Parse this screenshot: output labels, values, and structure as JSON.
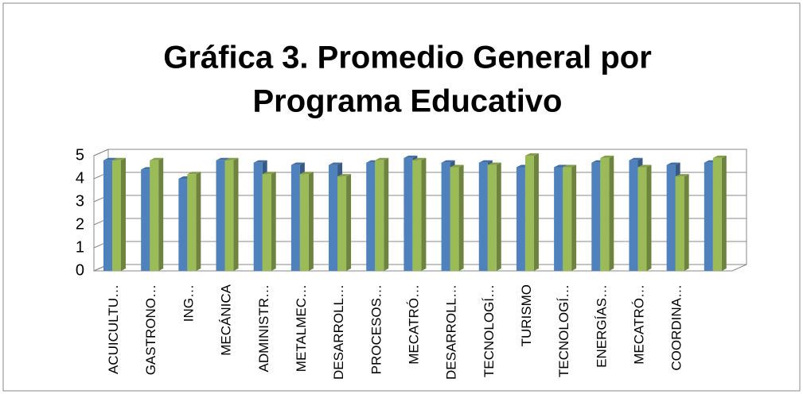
{
  "chart_data": {
    "type": "bar3d",
    "title": [
      "Gráfica 3. Promedio General por",
      "Programa Educativo"
    ],
    "categories": [
      "ACUICULTU…",
      "GASTRONO…",
      "ING…",
      "MECÁNICA",
      "ADMINISTR…",
      "METALMEC…",
      "DESARROLL…",
      "PROCESOS…",
      "MECATRÓ…",
      "DESARROLL…",
      "TECNOLOGÍ…",
      "TURISMO",
      "TECNOLOGÍ…",
      "ENERGÍAS…",
      "MECATRÓ…",
      "COORDINA…",
      null
    ],
    "series": [
      {
        "color": "#4f81bd",
        "values": [
          4.8,
          4.4,
          4.0,
          4.8,
          4.7,
          4.6,
          4.6,
          4.7,
          4.9,
          4.7,
          4.7,
          4.5,
          4.5,
          4.7,
          4.8,
          4.6,
          4.7
        ]
      },
      {
        "color": "#9bbb59",
        "values": [
          4.8,
          4.8,
          4.2,
          4.8,
          4.2,
          4.2,
          4.1,
          4.8,
          4.8,
          4.5,
          4.6,
          5.0,
          4.5,
          4.9,
          4.5,
          4.1,
          4.9
        ]
      }
    ],
    "ylim": [
      0,
      5
    ],
    "yticks": [
      0,
      1,
      2,
      3,
      4,
      5
    ],
    "grid": true
  }
}
